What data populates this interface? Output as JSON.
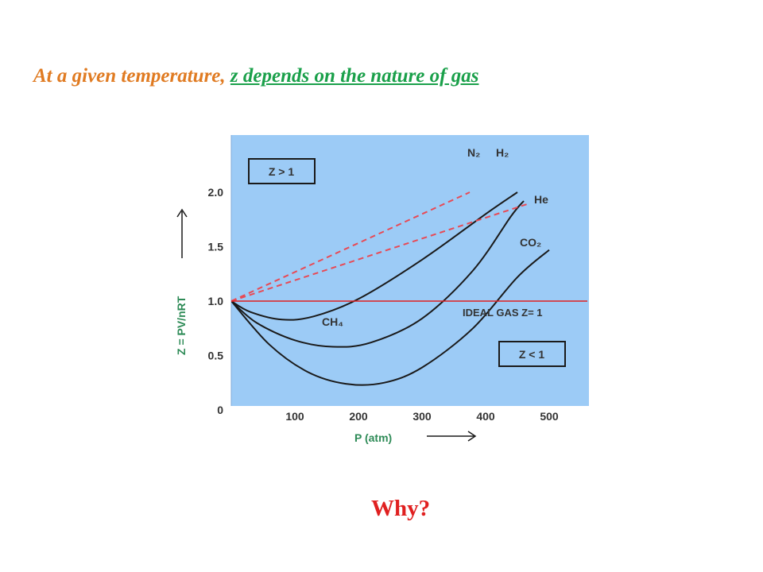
{
  "headline": {
    "part1": "At a given temperature,",
    "part2": "z depends on the nature of gas",
    "part1_color": "#e07b22",
    "part2_color": "#1aa04a"
  },
  "question": "Why?",
  "colors": {
    "plot_background": "#9ccbf6",
    "curve": "#1a1a1a",
    "dashed": "#e84a55",
    "ideal": "#e02020",
    "axis_text": "#333333",
    "green_label": "#2e8b57"
  },
  "chart_data": {
    "type": "line",
    "xlabel": "P (atm)",
    "ylabel": "Z = PV/nRT",
    "xlim": [
      0,
      560
    ],
    "ylim": [
      0,
      2.2
    ],
    "xticks": [
      {
        "value": 100,
        "label": "100"
      },
      {
        "value": 200,
        "label": "200"
      },
      {
        "value": 300,
        "label": "300"
      },
      {
        "value": 400,
        "label": "400"
      },
      {
        "value": 500,
        "label": "500"
      }
    ],
    "yticks": [
      {
        "value": 0,
        "label": "0"
      },
      {
        "value": 0.5,
        "label": "0.5"
      },
      {
        "value": 1.0,
        "label": "1.0"
      },
      {
        "value": 1.5,
        "label": "1.5"
      },
      {
        "value": 2.0,
        "label": "2.0"
      }
    ],
    "grid": false,
    "series": [
      {
        "name": "N₂",
        "style": "solid",
        "points": [
          [
            0,
            1.0
          ],
          [
            30,
            0.9
          ],
          [
            80,
            0.83
          ],
          [
            130,
            0.86
          ],
          [
            200,
            1.02
          ],
          [
            300,
            1.38
          ],
          [
            400,
            1.8
          ],
          [
            450,
            2.0
          ]
        ]
      },
      {
        "name": "CH₄",
        "style": "solid",
        "points": [
          [
            0,
            1.0
          ],
          [
            40,
            0.8
          ],
          [
            100,
            0.64
          ],
          [
            160,
            0.58
          ],
          [
            220,
            0.62
          ],
          [
            300,
            0.84
          ],
          [
            380,
            1.28
          ],
          [
            440,
            1.78
          ],
          [
            460,
            1.92
          ]
        ]
      },
      {
        "name": "CO₂",
        "style": "solid",
        "points": [
          [
            0,
            1.0
          ],
          [
            60,
            0.6
          ],
          [
            120,
            0.35
          ],
          [
            180,
            0.24
          ],
          [
            240,
            0.25
          ],
          [
            300,
            0.39
          ],
          [
            380,
            0.75
          ],
          [
            450,
            1.22
          ],
          [
            500,
            1.47
          ]
        ]
      },
      {
        "name": "H₂",
        "style": "dashed",
        "points": [
          [
            0,
            1.0
          ],
          [
            375,
            2.0
          ]
        ]
      },
      {
        "name": "He",
        "style": "dashed",
        "points": [
          [
            0,
            1.0
          ],
          [
            470,
            1.9
          ]
        ]
      },
      {
        "name": "IDEAL GAS Z= 1",
        "style": "ideal",
        "points": [
          [
            0,
            1.0
          ],
          [
            560,
            1.0
          ]
        ]
      }
    ],
    "annotations": {
      "z_gt_1": "Z > 1",
      "z_lt_1": "Z < 1",
      "n2": "N₂",
      "h2": "H₂",
      "he": "He",
      "co2": "CO₂",
      "ch4": "CH₄",
      "ideal_gas": "IDEAL GAS Z= 1"
    }
  }
}
